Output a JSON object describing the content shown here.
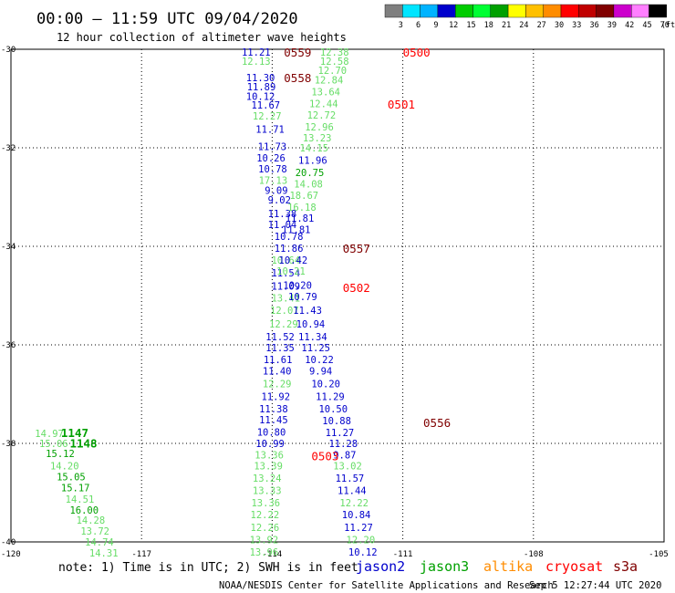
{
  "title": "00:00 – 11:59 UTC 09/04/2020",
  "subtitle": "12 hour collection of altimeter wave heights",
  "colorbar": {
    "unit": "(ft)",
    "colors": [
      "#7f7f7f",
      "#00e5ff",
      "#00b3ff",
      "#0000cc",
      "#00cc00",
      "#00ff33",
      "#00a000",
      "#ffff00",
      "#ffc000",
      "#ff8c00",
      "#ff0000",
      "#c00000",
      "#800000",
      "#cc00cc",
      "#ff7fff",
      "#000000"
    ],
    "labels": [
      "3",
      "6",
      "9",
      "12",
      "15",
      "18",
      "21",
      "24",
      "27",
      "30",
      "33",
      "36",
      "39",
      "42",
      "45",
      "70"
    ]
  },
  "note": "note: 1) Time is in UTC; 2) SWH is in feet",
  "satellites": [
    {
      "name": "jason2",
      "color": "#0000cc"
    },
    {
      "name": "jason3",
      "color": "#00a000"
    },
    {
      "name": "altika",
      "color": "#ff8c00"
    },
    {
      "name": "cryosat",
      "color": "#ff0000"
    },
    {
      "name": "s3a",
      "color": "#800000"
    }
  ],
  "credit": "NOAA/NESDIS Center for Satellite Applications and Research",
  "timestamp": "Sep  5 12:27:44 UTC 2020",
  "chart_data": {
    "type": "scatter",
    "title": "00:00 – 11:59 UTC 09/04/2020",
    "subtitle": "12 hour collection of altimeter wave heights",
    "xlabel": "",
    "ylabel": "",
    "xlim": [
      -120,
      -105
    ],
    "ylim": [
      -40,
      -30
    ],
    "xticks": [
      "-120",
      "-117",
      "-114",
      "-111",
      "-108",
      "-105"
    ],
    "yticks": [
      "-30",
      "-32",
      "-34",
      "-36",
      "-38",
      "-40"
    ],
    "grid": true,
    "colors": {
      "c1": "#0000cc",
      "c2": "#00a000",
      "c3": "#66dd66",
      "c4": "#ff0000",
      "c5": "#800000"
    },
    "passes": [
      {
        "label": "0559",
        "color": "c5",
        "lon": -113.73,
        "lat": -30.06
      },
      {
        "label": "0500",
        "color": "c4",
        "lon": -111.0,
        "lat": -30.06
      },
      {
        "label": "0558",
        "color": "c5",
        "lon": -113.73,
        "lat": -30.57
      },
      {
        "label": "0501",
        "color": "c4",
        "lon": -111.35,
        "lat": -31.11
      },
      {
        "label": "0557",
        "color": "c5",
        "lon": -112.38,
        "lat": -34.04
      },
      {
        "label": "0502",
        "color": "c4",
        "lon": -112.38,
        "lat": -34.83
      },
      {
        "label": "0556",
        "color": "c5",
        "lon": -110.53,
        "lat": -37.57
      },
      {
        "label": "0503",
        "color": "c4",
        "lon": -113.1,
        "lat": -38.25
      },
      {
        "label": "1147",
        "color": "c2",
        "lon": -118.85,
        "lat": -37.78
      },
      {
        "label": "1148",
        "color": "c2",
        "lon": -118.65,
        "lat": -37.99
      }
    ],
    "points": [
      {
        "lon": -114.7,
        "lat": -30.06,
        "v": "11.21",
        "c": "c1"
      },
      {
        "lon": -114.7,
        "lat": -30.24,
        "v": "12.13",
        "c": "c3"
      },
      {
        "lon": -114.6,
        "lat": -30.57,
        "v": "11.30",
        "c": "c1"
      },
      {
        "lon": -114.58,
        "lat": -30.76,
        "v": "11.89",
        "c": "c1"
      },
      {
        "lon": -114.6,
        "lat": -30.95,
        "v": "10.12",
        "c": "c1"
      },
      {
        "lon": -114.48,
        "lat": -31.13,
        "v": "11.67",
        "c": "c1"
      },
      {
        "lon": -114.45,
        "lat": -31.35,
        "v": "12.27",
        "c": "c3"
      },
      {
        "lon": -114.38,
        "lat": -31.62,
        "v": "11.71",
        "c": "c1"
      },
      {
        "lon": -114.33,
        "lat": -31.97,
        "v": "11.73",
        "c": "c1"
      },
      {
        "lon": -114.36,
        "lat": -32.2,
        "v": "10.26",
        "c": "c1"
      },
      {
        "lon": -114.32,
        "lat": -32.43,
        "v": "10.78",
        "c": "c1"
      },
      {
        "lon": -114.31,
        "lat": -32.66,
        "v": "17.13",
        "c": "c3"
      },
      {
        "lon": -114.17,
        "lat": -32.86,
        "v": "9.09",
        "c": "c1"
      },
      {
        "lon": -114.1,
        "lat": -33.06,
        "v": "9.02",
        "c": "c1"
      },
      {
        "lon": -114.1,
        "lat": -33.33,
        "v": "11.38",
        "c": "c1"
      },
      {
        "lon": -114.1,
        "lat": -33.56,
        "v": "11.04",
        "c": "c1"
      },
      {
        "lon": -113.95,
        "lat": -33.8,
        "v": "10.78",
        "c": "c1"
      },
      {
        "lon": -113.95,
        "lat": -34.04,
        "v": "11.86",
        "c": "c1"
      },
      {
        "lon": -114.02,
        "lat": -34.28,
        "v": "10.64",
        "c": "c3"
      },
      {
        "lon": -114.02,
        "lat": -34.54,
        "v": "11.54",
        "c": "c1"
      },
      {
        "lon": -114.02,
        "lat": -34.81,
        "v": "11.09",
        "c": "c1"
      },
      {
        "lon": -114.02,
        "lat": -35.05,
        "v": "13.41",
        "c": "c3"
      },
      {
        "lon": -114.05,
        "lat": -35.3,
        "v": "12.07",
        "c": "c3"
      },
      {
        "lon": -114.07,
        "lat": -35.57,
        "v": "12.29",
        "c": "c3"
      },
      {
        "lon": -114.15,
        "lat": -35.83,
        "v": "11.52",
        "c": "c1"
      },
      {
        "lon": -114.15,
        "lat": -36.06,
        "v": "11.35",
        "c": "c1"
      },
      {
        "lon": -114.2,
        "lat": -36.3,
        "v": "11.61",
        "c": "c1"
      },
      {
        "lon": -114.22,
        "lat": -36.53,
        "v": "11.40",
        "c": "c1"
      },
      {
        "lon": -114.22,
        "lat": -36.79,
        "v": "12.29",
        "c": "c3"
      },
      {
        "lon": -114.25,
        "lat": -37.05,
        "v": "11.92",
        "c": "c1"
      },
      {
        "lon": -114.3,
        "lat": -37.3,
        "v": "11.38",
        "c": "c1"
      },
      {
        "lon": -114.3,
        "lat": -37.52,
        "v": "11.45",
        "c": "c1"
      },
      {
        "lon": -114.35,
        "lat": -37.77,
        "v": "10.80",
        "c": "c1"
      },
      {
        "lon": -114.38,
        "lat": -38.0,
        "v": "10.99",
        "c": "c1"
      },
      {
        "lon": -114.4,
        "lat": -38.23,
        "v": "13.36",
        "c": "c3"
      },
      {
        "lon": -114.42,
        "lat": -38.45,
        "v": "13.39",
        "c": "c3"
      },
      {
        "lon": -114.45,
        "lat": -38.7,
        "v": "13.24",
        "c": "c3"
      },
      {
        "lon": -114.45,
        "lat": -38.95,
        "v": "13.33",
        "c": "c3"
      },
      {
        "lon": -114.48,
        "lat": -39.2,
        "v": "13.36",
        "c": "c3"
      },
      {
        "lon": -114.5,
        "lat": -39.44,
        "v": "12.22",
        "c": "c3"
      },
      {
        "lon": -114.5,
        "lat": -39.7,
        "v": "12.26",
        "c": "c3"
      },
      {
        "lon": -114.52,
        "lat": -39.95,
        "v": "13.92",
        "c": "c3"
      },
      {
        "lon": -114.52,
        "lat": -40.2,
        "v": "13.96",
        "c": "c3"
      },
      {
        "lon": -112.9,
        "lat": -30.06,
        "v": "12.38",
        "c": "c3"
      },
      {
        "lon": -112.9,
        "lat": -30.24,
        "v": "12.58",
        "c": "c3"
      },
      {
        "lon": -112.95,
        "lat": -30.43,
        "v": "12.70",
        "c": "c3"
      },
      {
        "lon": -113.03,
        "lat": -30.62,
        "v": "12.84",
        "c": "c3"
      },
      {
        "lon": -113.1,
        "lat": -30.86,
        "v": "13.64",
        "c": "c3"
      },
      {
        "lon": -113.15,
        "lat": -31.1,
        "v": "12.44",
        "c": "c3"
      },
      {
        "lon": -113.2,
        "lat": -31.33,
        "v": "12.72",
        "c": "c3"
      },
      {
        "lon": -113.25,
        "lat": -31.57,
        "v": "12.96",
        "c": "c3"
      },
      {
        "lon": -113.3,
        "lat": -31.8,
        "v": "13.23",
        "c": "c3"
      },
      {
        "lon": -113.37,
        "lat": -32.0,
        "v": "14.15",
        "c": "c3"
      },
      {
        "lon": -113.4,
        "lat": -32.25,
        "v": "11.96",
        "c": "c1"
      },
      {
        "lon": -113.47,
        "lat": -32.5,
        "v": "20.75",
        "c": "c2"
      },
      {
        "lon": -113.5,
        "lat": -32.73,
        "v": "14.08",
        "c": "c3"
      },
      {
        "lon": -113.6,
        "lat": -32.96,
        "v": "18.67",
        "c": "c3"
      },
      {
        "lon": -113.65,
        "lat": -33.2,
        "v": "16.18",
        "c": "c3"
      },
      {
        "lon": -113.7,
        "lat": -33.43,
        "v": "11.81",
        "c": "c1"
      },
      {
        "lon": -113.78,
        "lat": -33.66,
        "v": "11.81",
        "c": "c1"
      },
      {
        "lon": -113.85,
        "lat": -34.28,
        "v": "10.42",
        "c": "c1"
      },
      {
        "lon": -113.9,
        "lat": -34.5,
        "v": "10.21",
        "c": "c3"
      },
      {
        "lon": -113.75,
        "lat": -34.79,
        "v": "10.20",
        "c": "c1"
      },
      {
        "lon": -113.63,
        "lat": -35.02,
        "v": "10.79",
        "c": "c1"
      },
      {
        "lon": -113.52,
        "lat": -35.3,
        "v": "11.43",
        "c": "c1"
      },
      {
        "lon": -113.45,
        "lat": -35.57,
        "v": "10.94",
        "c": "c1"
      },
      {
        "lon": -113.4,
        "lat": -35.83,
        "v": "11.34",
        "c": "c1"
      },
      {
        "lon": -113.33,
        "lat": -36.06,
        "v": "11.25",
        "c": "c1"
      },
      {
        "lon": -113.25,
        "lat": -36.3,
        "v": "10.22",
        "c": "c1"
      },
      {
        "lon": -113.15,
        "lat": -36.53,
        "v": "9.94",
        "c": "c1"
      },
      {
        "lon": -113.1,
        "lat": -36.79,
        "v": "10.20",
        "c": "c1"
      },
      {
        "lon": -113.0,
        "lat": -37.05,
        "v": "11.29",
        "c": "c1"
      },
      {
        "lon": -112.93,
        "lat": -37.3,
        "v": "10.50",
        "c": "c1"
      },
      {
        "lon": -112.85,
        "lat": -37.54,
        "v": "10.88",
        "c": "c1"
      },
      {
        "lon": -112.78,
        "lat": -37.78,
        "v": "11.27",
        "c": "c1"
      },
      {
        "lon": -112.7,
        "lat": -38.0,
        "v": "11.28",
        "c": "c1"
      },
      {
        "lon": -112.6,
        "lat": -38.23,
        "v": "9.87",
        "c": "c1"
      },
      {
        "lon": -112.6,
        "lat": -38.45,
        "v": "13.02",
        "c": "c3"
      },
      {
        "lon": -112.55,
        "lat": -38.7,
        "v": "11.57",
        "c": "c1"
      },
      {
        "lon": -112.5,
        "lat": -38.95,
        "v": "11.44",
        "c": "c1"
      },
      {
        "lon": -112.45,
        "lat": -39.2,
        "v": "12.22",
        "c": "c3"
      },
      {
        "lon": -112.4,
        "lat": -39.44,
        "v": "10.84",
        "c": "c1"
      },
      {
        "lon": -112.35,
        "lat": -39.7,
        "v": "11.27",
        "c": "c1"
      },
      {
        "lon": -112.3,
        "lat": -39.95,
        "v": "12.20",
        "c": "c3"
      },
      {
        "lon": -112.25,
        "lat": -40.2,
        "v": "10.12",
        "c": "c1"
      },
      {
        "lon": -119.45,
        "lat": -37.8,
        "v": "14.97",
        "c": "c3"
      },
      {
        "lon": -119.35,
        "lat": -38.0,
        "v": "15.06",
        "c": "c3"
      },
      {
        "lon": -119.2,
        "lat": -38.2,
        "v": "15.12",
        "c": "c2"
      },
      {
        "lon": -119.1,
        "lat": -38.45,
        "v": "14.20",
        "c": "c3"
      },
      {
        "lon": -118.95,
        "lat": -38.68,
        "v": "15.05",
        "c": "c2"
      },
      {
        "lon": -118.85,
        "lat": -38.9,
        "v": "15.17",
        "c": "c2"
      },
      {
        "lon": -118.75,
        "lat": -39.13,
        "v": "14.51",
        "c": "c3"
      },
      {
        "lon": -118.65,
        "lat": -39.35,
        "v": "16.00",
        "c": "c2"
      },
      {
        "lon": -118.5,
        "lat": -39.56,
        "v": "14.28",
        "c": "c3"
      },
      {
        "lon": -118.4,
        "lat": -39.78,
        "v": "13.72",
        "c": "c3"
      },
      {
        "lon": -118.3,
        "lat": -40.0,
        "v": "14.74",
        "c": "c3"
      },
      {
        "lon": -118.2,
        "lat": -40.22,
        "v": "14.31",
        "c": "c3"
      }
    ]
  }
}
